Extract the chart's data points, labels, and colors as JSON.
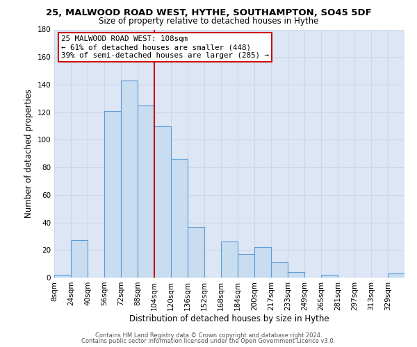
{
  "title": "25, MALWOOD ROAD WEST, HYTHE, SOUTHAMPTON, SO45 5DF",
  "subtitle": "Size of property relative to detached houses in Hythe",
  "xlabel": "Distribution of detached houses by size in Hythe",
  "ylabel": "Number of detached properties",
  "bar_labels": [
    "8sqm",
    "24sqm",
    "40sqm",
    "56sqm",
    "72sqm",
    "88sqm",
    "104sqm",
    "120sqm",
    "136sqm",
    "152sqm",
    "168sqm",
    "184sqm",
    "200sqm",
    "217sqm",
    "233sqm",
    "249sqm",
    "265sqm",
    "281sqm",
    "297sqm",
    "313sqm",
    "329sqm"
  ],
  "bar_values": [
    2,
    27,
    0,
    121,
    143,
    125,
    110,
    86,
    37,
    0,
    26,
    17,
    22,
    11,
    4,
    0,
    2,
    0,
    0,
    0,
    3
  ],
  "bar_color": "#c9ddf0",
  "bar_edge_color": "#5b9bd5",
  "vline_color": "#cc0000",
  "vline_index": 6,
  "annotation_title": "25 MALWOOD ROAD WEST: 108sqm",
  "annotation_line1": "← 61% of detached houses are smaller (448)",
  "annotation_line2": "39% of semi-detached houses are larger (285) →",
  "annotation_box_color": "#ffffff",
  "annotation_border_color": "#cc0000",
  "ylim": [
    0,
    180
  ],
  "yticks": [
    0,
    20,
    40,
    60,
    80,
    100,
    120,
    140,
    160,
    180
  ],
  "footer1": "Contains HM Land Registry data © Crown copyright and database right 2024.",
  "footer2": "Contains public sector information licensed under the Open Government Licence v3.0.",
  "grid_color": "#ccd6e8",
  "background_color": "#dce6f5"
}
